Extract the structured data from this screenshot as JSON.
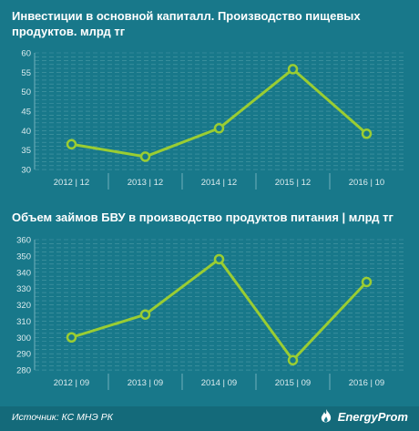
{
  "chart_data": [
    {
      "type": "line",
      "title": "Инвестиции в  основной капиталл. Производство пищевых продуктов. млрд тг",
      "categories": [
        "2012 | 12",
        "2013 | 12",
        "2014 | 12",
        "2015 | 12",
        "2016 | 10"
      ],
      "values": [
        36.5,
        33.3,
        40.6,
        55.8,
        39.2
      ],
      "ylim": [
        30,
        60
      ],
      "yticks": [
        30,
        35,
        40,
        45,
        50,
        55,
        60
      ],
      "grid": true
    },
    {
      "type": "line",
      "title": "Объем займов БВУ в производство продуктов питания  |  млрд тг",
      "categories": [
        "2012 | 09",
        "2013 | 09",
        "2014 | 09",
        "2015 | 09",
        "2016 | 09"
      ],
      "values": [
        300,
        314,
        348,
        286,
        334
      ],
      "ylim": [
        280,
        360
      ],
      "yticks": [
        280,
        290,
        300,
        310,
        320,
        330,
        340,
        350,
        360
      ],
      "grid": true
    }
  ],
  "colors": {
    "background": "#18788a",
    "line": "#9acd32",
    "grid": "#4d9aa8"
  },
  "footer": {
    "source": "Источник: КС МНЭ РК",
    "brand": "EnergyProm",
    "brand_icon": "flame-logo-icon"
  }
}
